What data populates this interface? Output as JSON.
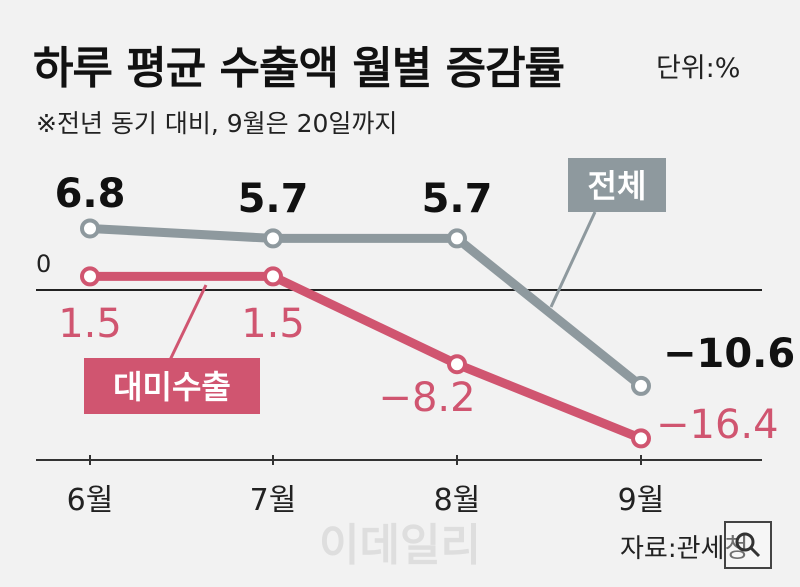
{
  "header": {
    "title": "하루 평균 수출액 월별 증감률",
    "unit": "단위:%",
    "note": "※전년 동기 대비, 9월은 20일까지"
  },
  "footer": {
    "source": "자료:관세청",
    "watermark": "이데일리"
  },
  "colors": {
    "total": "#8e999e",
    "us": "#d05570",
    "background": "#f2f2f2"
  },
  "chart_data": {
    "type": "line",
    "categories": [
      "6월",
      "7월",
      "8월",
      "9월"
    ],
    "zero_label": "0",
    "series": [
      {
        "name": "전체",
        "values": [
          6.8,
          5.7,
          5.7,
          -10.6
        ],
        "labels": [
          "6.8",
          "5.7",
          "5.7",
          "−10.6"
        ]
      },
      {
        "name": "대미수출",
        "values": [
          1.5,
          1.5,
          -8.2,
          -16.4
        ],
        "labels": [
          "1.5",
          "1.5",
          "−8.2",
          "−16.4"
        ]
      }
    ]
  }
}
